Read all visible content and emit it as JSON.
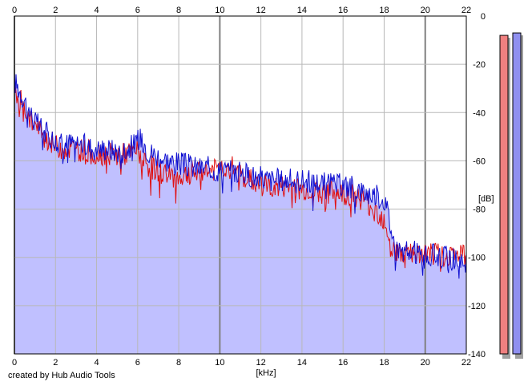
{
  "colors": {
    "left_channel": "#e01010",
    "right_channel": "#1010d0",
    "fill": "#c0c0ff",
    "meter_left": "#f08080",
    "meter_right": "#9090f0",
    "grid": "#b8b8b8",
    "grid_major": "#808080"
  },
  "footer": {
    "credit": "created by Hub Audio Tools"
  },
  "meters": {
    "left_level_db": -8,
    "right_level_db": -7
  },
  "chart_data": {
    "type": "line",
    "xlabel": "[kHz]",
    "ylabel": "[dB]",
    "xlim": [
      0,
      22
    ],
    "ylim": [
      -140,
      0
    ],
    "x_ticks": [
      "0",
      "2",
      "4",
      "6",
      "8",
      "10",
      "12",
      "14",
      "16",
      "18",
      "20",
      "22"
    ],
    "y_ticks": [
      "0",
      "-20",
      "-40",
      "-60",
      "-80",
      "-100",
      "-120",
      "-140"
    ],
    "grid": true,
    "series": [
      {
        "channel": "right",
        "color": "#1010d0",
        "x": [
          0,
          0.2,
          0.5,
          1,
          1.5,
          2,
          2.5,
          3,
          3.5,
          4,
          4.5,
          5,
          5.5,
          6,
          6.2,
          6.5,
          7,
          7.5,
          8,
          8.5,
          9,
          9.5,
          10,
          10.5,
          11,
          11.5,
          12,
          12.5,
          13,
          13.5,
          14,
          14.5,
          15,
          15.5,
          16,
          16.5,
          17,
          17.5,
          18,
          18.2,
          18.5,
          19,
          19.5,
          20,
          20.5,
          21,
          21.5,
          22
        ],
        "y": [
          -27,
          -30,
          -35,
          -44,
          -48,
          -52,
          -53,
          -52,
          -54,
          -55,
          -55,
          -56,
          -55,
          -52,
          -50,
          -56,
          -58,
          -60,
          -61,
          -62,
          -63,
          -63,
          -64,
          -64,
          -65,
          -66,
          -67,
          -68,
          -68,
          -68,
          -68,
          -69,
          -69,
          -70,
          -70,
          -71,
          -73,
          -74,
          -76,
          -82,
          -95,
          -98,
          -98,
          -100,
          -99,
          -100,
          -101,
          -102
        ]
      },
      {
        "channel": "left",
        "color": "#e01010",
        "x": [
          0,
          0.2,
          0.5,
          1,
          1.5,
          2,
          2.5,
          3,
          3.5,
          4,
          4.5,
          5,
          5.5,
          6,
          6.5,
          7,
          7.5,
          8,
          8.5,
          9,
          9.5,
          10,
          10.5,
          11,
          11.5,
          12,
          12.5,
          13,
          13.5,
          14,
          14.5,
          15,
          15.5,
          16,
          16.5,
          17,
          17.5,
          18,
          18.2,
          18.5,
          19,
          19.5,
          20,
          20.5,
          21,
          21.5,
          22
        ],
        "y": [
          -30,
          -34,
          -38,
          -46,
          -50,
          -54,
          -55,
          -55,
          -56,
          -57,
          -57,
          -58,
          -57,
          -56,
          -62,
          -64,
          -66,
          -67,
          -65,
          -65,
          -64,
          -63,
          -62,
          -66,
          -68,
          -70,
          -71,
          -71,
          -71,
          -72,
          -72,
          -73,
          -73,
          -74,
          -74,
          -76,
          -80,
          -84,
          -90,
          -98,
          -99,
          -99,
          -99,
          -99,
          -99,
          -99,
          -99
        ]
      }
    ]
  }
}
